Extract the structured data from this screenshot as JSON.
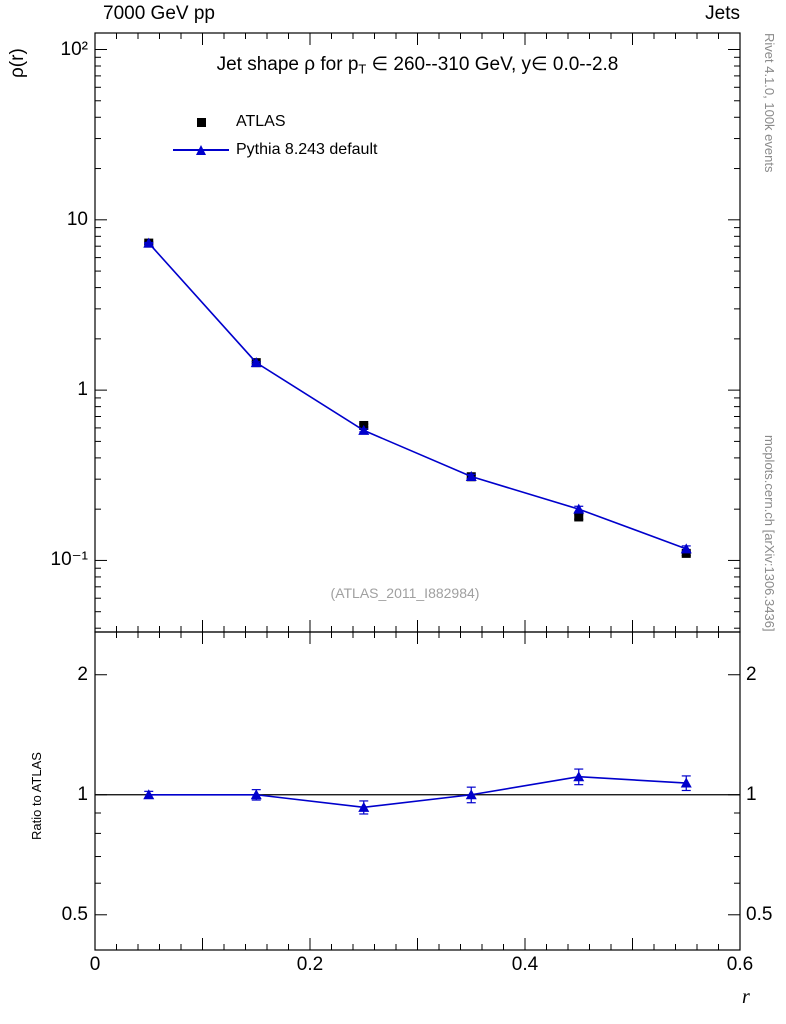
{
  "header": {
    "left": "7000 GeV pp",
    "right": "Jets"
  },
  "side_labels": {
    "top": "Rivet 4.1.0,  100k events",
    "bottom": "mcplots.cern.ch [arXiv:1306.3436]"
  },
  "watermark": "(ATLAS_2011_I882984)",
  "legend": {
    "items": [
      {
        "label": "ATLAS",
        "marker": "square",
        "color": "#000000"
      },
      {
        "label": "Pythia 8.243 default",
        "marker": "line-triangle",
        "color": "#0000cc"
      }
    ]
  },
  "chart_data": {
    "type": "line",
    "title": "Jet shape ρ for p_T ∈ 260--310 GeV, y∈ 0.0--2.8",
    "title_parts": [
      {
        "t": "Jet shape ρ for p"
      },
      {
        "t": "T",
        "sub": true
      },
      {
        "t": " ∈ 260--310 GeV, y∈ 0.0--2.8"
      }
    ],
    "x": [
      0.05,
      0.15,
      0.25,
      0.35,
      0.45,
      0.55
    ],
    "xaxis": {
      "label": "r",
      "min": 0,
      "max": 0.6,
      "tick_step_minor": 0.02,
      "tick_step_major": 0.1,
      "labeled_ticks": [
        {
          "v": 0,
          "label": "0"
        },
        {
          "v": 0.2,
          "label": "0.2"
        },
        {
          "v": 0.4,
          "label": "0.4"
        },
        {
          "v": 0.6,
          "label": "0.6"
        }
      ]
    },
    "main": {
      "ylabel": "ρ(r)",
      "scale": "log",
      "ylim": [
        0.038,
        125
      ],
      "yticks": [
        {
          "v": 100,
          "label": "10²"
        },
        {
          "v": 10,
          "label": "10"
        },
        {
          "v": 1,
          "label": "1"
        },
        {
          "v": 0.1,
          "label": "10⁻¹"
        }
      ]
    },
    "series": [
      {
        "name": "ATLAS",
        "marker": "square",
        "color": "#000000",
        "line": false,
        "values": [
          7.3,
          1.45,
          0.62,
          0.31,
          0.18,
          0.11
        ],
        "rel_errors": [
          0.015,
          0.015,
          0.02,
          0.02,
          0.03,
          0.03
        ]
      },
      {
        "name": "Pythia 8.243 default",
        "marker": "triangle",
        "color": "#0000cc",
        "line": true,
        "values": [
          7.3,
          1.45,
          0.58,
          0.311,
          0.2,
          0.117
        ],
        "rel_errors": [
          0.008,
          0.012,
          0.02,
          0.03,
          0.04,
          0.04
        ]
      }
    ],
    "ratio": {
      "ylabel": "Ratio to ATLAS",
      "scale": "log",
      "ylim": [
        0.408,
        2.56
      ],
      "reference": 1.0,
      "values": [
        1.0,
        1.0,
        0.93,
        1.0,
        1.11,
        1.07
      ],
      "abs_errors": [
        0.02,
        0.03,
        0.035,
        0.045,
        0.05,
        0.045
      ],
      "yticks": [
        {
          "v": 2,
          "label": "2"
        },
        {
          "v": 1,
          "label": "1"
        },
        {
          "v": 0.5,
          "label": "0.5"
        }
      ]
    }
  }
}
